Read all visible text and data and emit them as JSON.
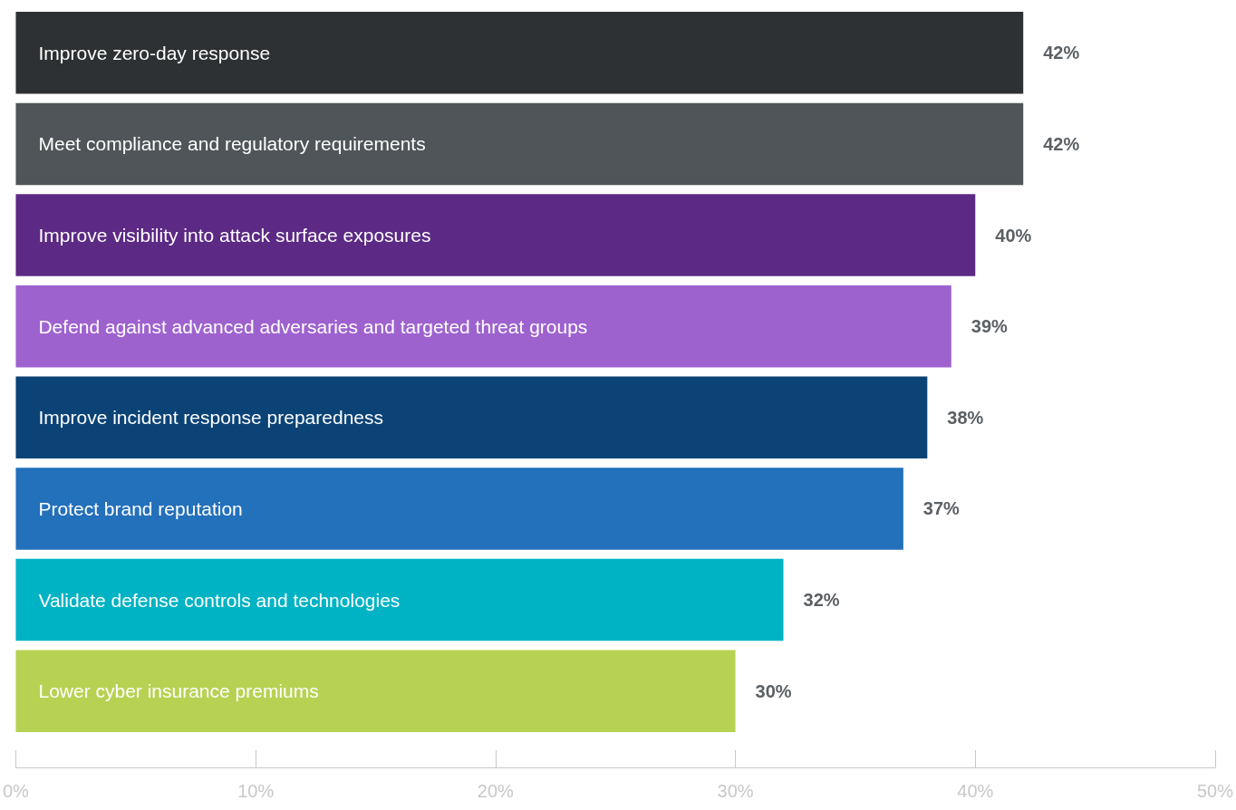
{
  "chart_data": {
    "type": "bar",
    "orientation": "horizontal",
    "categories": [
      "Improve zero-day response",
      "Meet compliance and regulatory requirements",
      "Improve visibility into attack surface exposures",
      "Defend against advanced adversaries and targeted threat groups",
      "Improve incident response preparedness",
      "Protect brand reputation",
      "Validate defense controls and technologies",
      "Lower cyber insurance premiums"
    ],
    "values": [
      42,
      42,
      40,
      39,
      38,
      37,
      32,
      30
    ],
    "colors": [
      "#2e3133",
      "#4f5558",
      "#5c2984",
      "#9e62cf",
      "#0b4377",
      "#2370bb",
      "#00b3c4",
      "#b7d253"
    ],
    "value_labels": [
      "42%",
      "42%",
      "40%",
      "39%",
      "38%",
      "37%",
      "32%",
      "30%"
    ],
    "xlim": [
      0,
      50
    ],
    "xticks": [
      {
        "value": 0,
        "label": "0%"
      },
      {
        "value": 10,
        "label": "10%"
      },
      {
        "value": 20,
        "label": "20%"
      },
      {
        "value": 30,
        "label": "30%"
      },
      {
        "value": 40,
        "label": "40%"
      },
      {
        "value": 50,
        "label": "50%"
      }
    ],
    "grid": false
  }
}
